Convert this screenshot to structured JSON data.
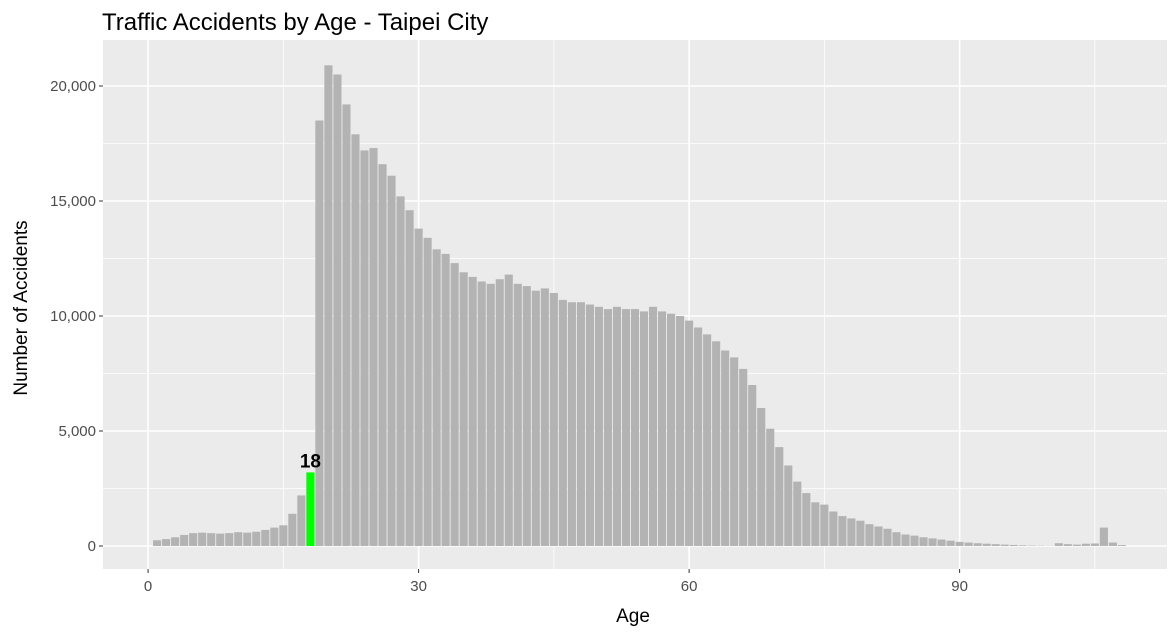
{
  "chart_data": {
    "type": "bar",
    "title": "Traffic Accidents by Age - Taipei City",
    "xlabel": "Age",
    "ylabel": "Number of Accidents",
    "xlim": [
      -5,
      113
    ],
    "ylim": [
      -1000,
      22000
    ],
    "x_ticks": [
      0,
      30,
      60,
      90
    ],
    "x_tick_labels": [
      "0",
      "30",
      "60",
      "90"
    ],
    "y_ticks": [
      0,
      5000,
      10000,
      15000,
      20000
    ],
    "y_tick_labels": [
      "0",
      "5,000",
      "10,000",
      "15,000",
      "20,000"
    ],
    "grid": true,
    "legend": "none",
    "colors": {
      "panel": "#ebebeb",
      "grid": "#ffffff",
      "bar": "#b3b3b3",
      "highlight": "#00ff00"
    },
    "highlight": {
      "x": 18,
      "label": "18"
    },
    "x": [
      1,
      2,
      3,
      4,
      5,
      6,
      7,
      8,
      9,
      10,
      11,
      12,
      13,
      14,
      15,
      16,
      17,
      18,
      19,
      20,
      21,
      22,
      23,
      24,
      25,
      26,
      27,
      28,
      29,
      30,
      31,
      32,
      33,
      34,
      35,
      36,
      37,
      38,
      39,
      40,
      41,
      42,
      43,
      44,
      45,
      46,
      47,
      48,
      49,
      50,
      51,
      52,
      53,
      54,
      55,
      56,
      57,
      58,
      59,
      60,
      61,
      62,
      63,
      64,
      65,
      66,
      67,
      68,
      69,
      70,
      71,
      72,
      73,
      74,
      75,
      76,
      77,
      78,
      79,
      80,
      81,
      82,
      83,
      84,
      85,
      86,
      87,
      88,
      89,
      90,
      91,
      92,
      93,
      94,
      95,
      96,
      97,
      98,
      99,
      100,
      101,
      102,
      103,
      104,
      105,
      106,
      107,
      108
    ],
    "values": [
      250,
      300,
      380,
      480,
      560,
      580,
      560,
      540,
      560,
      600,
      580,
      620,
      700,
      800,
      900,
      1400,
      2200,
      3200,
      18500,
      20900,
      20500,
      19200,
      17900,
      17200,
      17300,
      16600,
      16100,
      15200,
      14600,
      13800,
      13400,
      12900,
      12700,
      12300,
      11900,
      11700,
      11500,
      11400,
      11600,
      11800,
      11400,
      11300,
      11100,
      11200,
      11000,
      10700,
      10600,
      10600,
      10500,
      10400,
      10300,
      10400,
      10300,
      10300,
      10200,
      10400,
      10200,
      10100,
      10000,
      9800,
      9500,
      9200,
      8900,
      8500,
      8200,
      7700,
      7000,
      6000,
      5100,
      4300,
      3500,
      2800,
      2300,
      1900,
      1800,
      1500,
      1300,
      1200,
      1100,
      950,
      850,
      750,
      600,
      500,
      450,
      380,
      330,
      280,
      230,
      180,
      150,
      120,
      100,
      80,
      60,
      45,
      30,
      20,
      15,
      10,
      120,
      80,
      60,
      100,
      110,
      800,
      150,
      40
    ]
  }
}
